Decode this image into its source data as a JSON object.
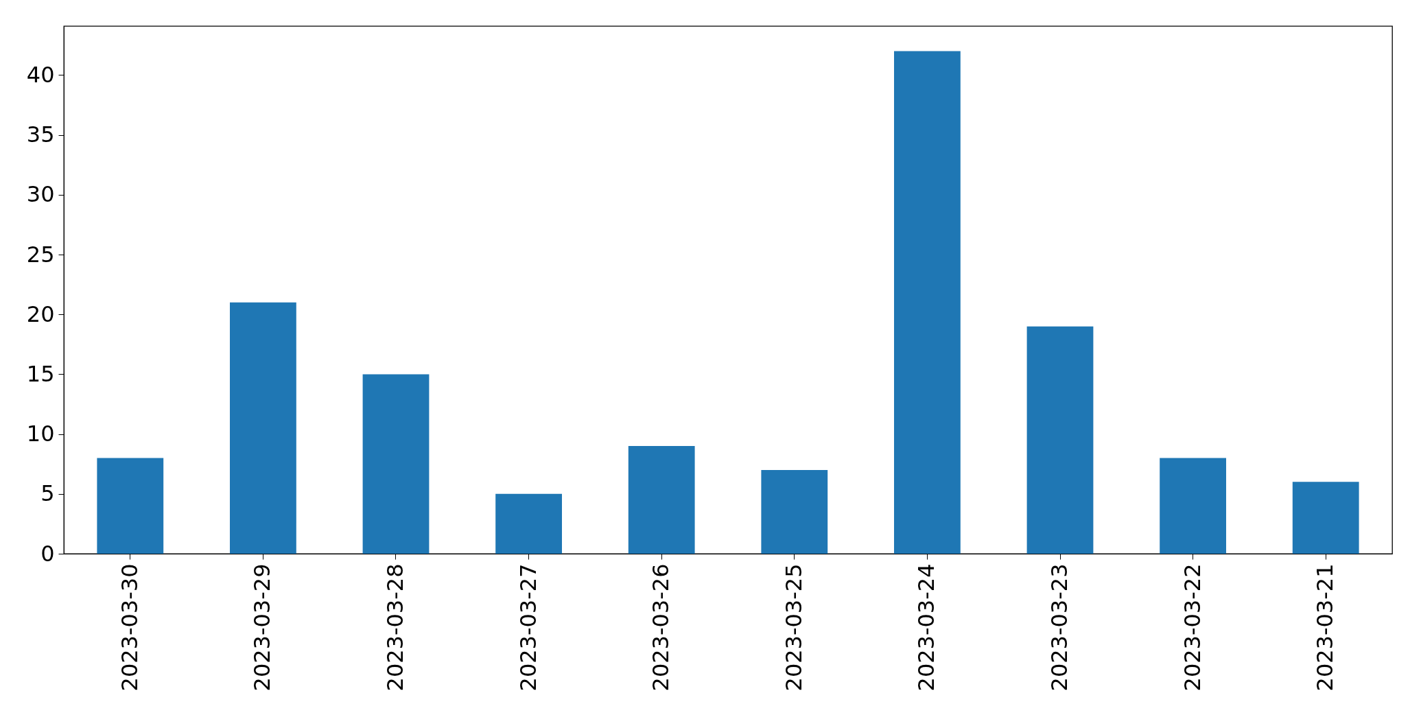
{
  "chart_data": {
    "type": "bar",
    "categories": [
      "2023-03-30",
      "2023-03-29",
      "2023-03-28",
      "2023-03-27",
      "2023-03-26",
      "2023-03-25",
      "2023-03-24",
      "2023-03-23",
      "2023-03-22",
      "2023-03-21"
    ],
    "values": [
      8,
      21,
      15,
      5,
      9,
      7,
      42,
      19,
      8,
      6
    ],
    "color": "#1f77b4",
    "ylim": [
      0,
      44.1
    ],
    "yticks": [
      0,
      5,
      10,
      15,
      20,
      25,
      30,
      35,
      40
    ],
    "grid": false
  }
}
